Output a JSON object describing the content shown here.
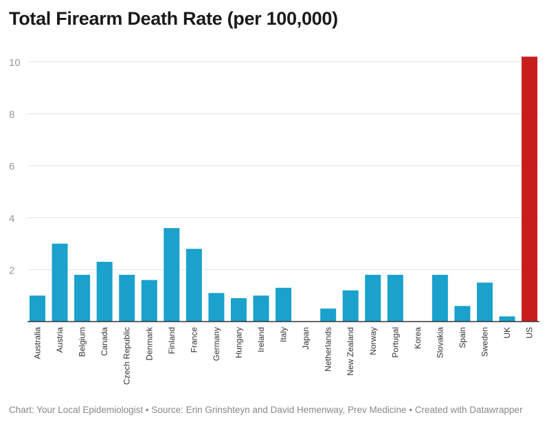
{
  "chart_data": {
    "type": "bar",
    "title": "Total Firearm Death Rate (per 100,000)",
    "categories": [
      "Australia",
      "Austria",
      "Belgium",
      "Canada",
      "Czech Republic",
      "Denmark",
      "Finland",
      "France",
      "Germany",
      "Hungary",
      "Ireland",
      "Italy",
      "Japan",
      "Netherlands",
      "New Zealand",
      "Norway",
      "Portugal",
      "Korea",
      "Slovakia",
      "Spain",
      "Sweden",
      "UK",
      "US"
    ],
    "values": [
      1.0,
      3.0,
      1.8,
      2.3,
      1.8,
      1.6,
      3.6,
      2.8,
      1.1,
      0.9,
      1.0,
      1.3,
      0,
      0.5,
      1.2,
      1.8,
      1.8,
      0,
      1.8,
      0.6,
      1.5,
      0.2,
      10.2
    ],
    "ylim": [
      0,
      10
    ],
    "yticks": [
      2,
      4,
      6,
      8,
      10
    ],
    "grid": true,
    "colors": {
      "default": "#1aa1cc",
      "highlight": "#c71e1d",
      "highlight_category": "US"
    }
  },
  "footer": "Chart: Your Local Epidemiologist • Source: Erin Grinshteyn and David Hemenway, Prev Medicine • Created with Datawrapper"
}
